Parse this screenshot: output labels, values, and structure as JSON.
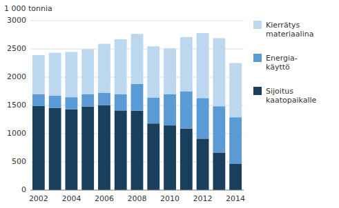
{
  "chart_data": {
    "type": "bar",
    "stacked": true,
    "ylabel": "1 000 tonnia",
    "categories": [
      "2002",
      null,
      "2004",
      null,
      "2006",
      null,
      "2008",
      null,
      "2010",
      null,
      "2012",
      null,
      "2014"
    ],
    "series": [
      {
        "name": "Sijoitus\nkaatopaikalle",
        "color": "#1a3f5c",
        "values": [
          1490,
          1455,
          1430,
          1480,
          1505,
          1410,
          1405,
          1180,
          1145,
          1090,
          910,
          665,
          470
        ]
      },
      {
        "name": "Energia-\nkäyttö",
        "color": "#5b9bd5",
        "values": [
          205,
          215,
          215,
          215,
          220,
          290,
          475,
          460,
          555,
          660,
          720,
          820,
          820
        ]
      },
      {
        "name": "Kierrätys\nmateriaalina",
        "color": "#bdd7ee",
        "values": [
          695,
          760,
          800,
          800,
          865,
          970,
          885,
          905,
          810,
          960,
          1150,
          1205,
          960
        ]
      }
    ],
    "ylim": [
      0,
      3000
    ],
    "yticks": [
      0,
      500,
      1000,
      1500,
      2000,
      2500,
      3000
    ],
    "grid": true,
    "legend": "right"
  }
}
